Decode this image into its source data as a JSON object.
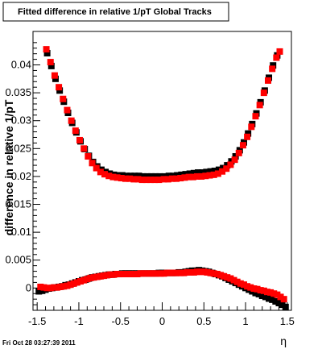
{
  "footer": {
    "timestamp": "Fri Oct 28 03:27:39 2011"
  },
  "chart_data": {
    "type": "scatter",
    "title": "Fitted difference in relative 1/pT  Global Tracks",
    "xlabel": "η",
    "ylabel": "difference in relative 1/pT",
    "xlim": [
      -1.55,
      1.55
    ],
    "ylim": [
      -0.004,
      0.046
    ],
    "xticks": [
      -1.5,
      -1,
      -0.5,
      0,
      0.5,
      1,
      1.5
    ],
    "xtick_labels": [
      "-1.5",
      "-1",
      "-0.5",
      "0",
      "0.5",
      "1",
      "1.5"
    ],
    "yticks": [
      0,
      0.005,
      0.01,
      0.015,
      0.02,
      0.025,
      0.03,
      0.035,
      0.04
    ],
    "ytick_labels": [
      "0",
      "0.005",
      "0.01",
      "0.015",
      "0.02",
      "0.025",
      "0.03",
      "0.035",
      "0.04"
    ],
    "grid": false,
    "series": [
      {
        "color": "#000000",
        "x": [
          -1.38,
          -1.33,
          -1.28,
          -1.23,
          -1.18,
          -1.13,
          -1.08,
          -1.03,
          -0.98,
          -0.93,
          -0.88,
          -0.83,
          -0.78,
          -0.73,
          -0.68,
          -0.63,
          -0.58,
          -0.53,
          -0.48,
          -0.43,
          -0.38,
          -0.33,
          -0.28,
          -0.23,
          -0.18,
          -0.13,
          -0.08,
          -0.03,
          0.03,
          0.08,
          0.13,
          0.18,
          0.23,
          0.28,
          0.33,
          0.38,
          0.43,
          0.48,
          0.53,
          0.58,
          0.63,
          0.68,
          0.73,
          0.78,
          0.83,
          0.88,
          0.93,
          0.98,
          1.03,
          1.08,
          1.13,
          1.18,
          1.23,
          1.28,
          1.33,
          1.38
        ],
        "y": [
          0.0421,
          0.0398,
          0.0375,
          0.0354,
          0.0334,
          0.0314,
          0.0296,
          0.0279,
          0.0263,
          0.0249,
          0.0237,
          0.0226,
          0.0218,
          0.0212,
          0.0208,
          0.0205,
          0.0203,
          0.0202,
          0.0202,
          0.0201,
          0.0201,
          0.0201,
          0.0201,
          0.02,
          0.02,
          0.02,
          0.02,
          0.02,
          0.02,
          0.0201,
          0.0201,
          0.0202,
          0.0203,
          0.0204,
          0.0205,
          0.0206,
          0.0207,
          0.0207,
          0.0208,
          0.0209,
          0.021,
          0.0212,
          0.0215,
          0.022,
          0.0227,
          0.0236,
          0.0247,
          0.0261,
          0.0277,
          0.0294,
          0.0313,
          0.0333,
          0.0354,
          0.0377,
          0.0399,
          0.0417
        ]
      },
      {
        "color": "#ff0000",
        "x": [
          -1.39,
          -1.34,
          -1.29,
          -1.24,
          -1.19,
          -1.14,
          -1.09,
          -1.04,
          -0.99,
          -0.94,
          -0.89,
          -0.84,
          -0.79,
          -0.74,
          -0.69,
          -0.64,
          -0.59,
          -0.54,
          -0.49,
          -0.44,
          -0.39,
          -0.34,
          -0.29,
          -0.24,
          -0.19,
          -0.14,
          -0.09,
          -0.04,
          0.02,
          0.07,
          0.12,
          0.17,
          0.22,
          0.27,
          0.32,
          0.37,
          0.42,
          0.47,
          0.52,
          0.57,
          0.62,
          0.67,
          0.72,
          0.77,
          0.82,
          0.87,
          0.92,
          0.97,
          1.02,
          1.07,
          1.12,
          1.17,
          1.22,
          1.27,
          1.32,
          1.37,
          1.41
        ],
        "y": [
          0.0428,
          0.0405,
          0.0381,
          0.036,
          0.0339,
          0.0319,
          0.03,
          0.0282,
          0.0265,
          0.025,
          0.0236,
          0.0224,
          0.0215,
          0.0208,
          0.0204,
          0.0201,
          0.0199,
          0.0198,
          0.0197,
          0.0196,
          0.0196,
          0.0195,
          0.0195,
          0.0194,
          0.0194,
          0.0194,
          0.0194,
          0.0194,
          0.0195,
          0.0195,
          0.0196,
          0.0196,
          0.0197,
          0.0198,
          0.0199,
          0.0199,
          0.02,
          0.02,
          0.0201,
          0.0202,
          0.0203,
          0.0205,
          0.0209,
          0.0214,
          0.0221,
          0.023,
          0.0242,
          0.0256,
          0.0271,
          0.0289,
          0.0308,
          0.0328,
          0.035,
          0.0372,
          0.0393,
          0.0413,
          0.0424
        ]
      },
      {
        "color": "#000000",
        "x": [
          -1.48,
          -1.44,
          -1.4,
          -1.36,
          -1.32,
          -1.28,
          -1.24,
          -1.2,
          -1.16,
          -1.12,
          -1.08,
          -1.04,
          -1.0,
          -0.96,
          -0.92,
          -0.88,
          -0.84,
          -0.8,
          -0.76,
          -0.72,
          -0.68,
          -0.64,
          -0.6,
          -0.56,
          -0.52,
          -0.48,
          -0.44,
          -0.4,
          -0.36,
          -0.32,
          -0.28,
          -0.24,
          -0.2,
          -0.16,
          -0.12,
          -0.08,
          -0.04,
          0.0,
          0.04,
          0.08,
          0.12,
          0.16,
          0.2,
          0.24,
          0.28,
          0.32,
          0.36,
          0.4,
          0.44,
          0.48,
          0.52,
          0.56,
          0.6,
          0.64,
          0.68,
          0.72,
          0.76,
          0.8,
          0.84,
          0.88,
          0.92,
          0.96,
          1.0,
          1.04,
          1.08,
          1.12,
          1.16,
          1.2,
          1.24,
          1.28,
          1.32,
          1.36,
          1.4,
          1.44,
          1.48
        ],
        "y": [
          -0.0006,
          -0.0005,
          -0.0003,
          -0.0001,
          0.0,
          0.0001,
          0.0002,
          0.0003,
          0.0005,
          0.0006,
          0.0008,
          0.001,
          0.0012,
          0.0014,
          0.0015,
          0.0017,
          0.0019,
          0.002,
          0.0021,
          0.0022,
          0.0023,
          0.0024,
          0.0024,
          0.0025,
          0.0025,
          0.0026,
          0.0026,
          0.0026,
          0.0026,
          0.0026,
          0.0026,
          0.0026,
          0.0026,
          0.0026,
          0.0026,
          0.0026,
          0.0027,
          0.0027,
          0.0027,
          0.0027,
          0.0027,
          0.0027,
          0.0028,
          0.0028,
          0.0029,
          0.003,
          0.0031,
          0.0031,
          0.0032,
          0.0031,
          0.003,
          0.0029,
          0.0027,
          0.0025,
          0.0023,
          0.0021,
          0.0018,
          0.0015,
          0.0012,
          0.0009,
          0.0006,
          0.0003,
          0.0,
          -0.0003,
          -0.0006,
          -0.0009,
          -0.0011,
          -0.0014,
          -0.0016,
          -0.0019,
          -0.0021,
          -0.0024,
          -0.0027,
          -0.003,
          -0.0034
        ]
      },
      {
        "color": "#ff0000",
        "x": [
          -1.46,
          -1.42,
          -1.38,
          -1.34,
          -1.3,
          -1.26,
          -1.22,
          -1.18,
          -1.14,
          -1.1,
          -1.06,
          -1.02,
          -0.98,
          -0.94,
          -0.9,
          -0.86,
          -0.82,
          -0.78,
          -0.74,
          -0.7,
          -0.66,
          -0.62,
          -0.58,
          -0.54,
          -0.5,
          -0.46,
          -0.42,
          -0.38,
          -0.34,
          -0.3,
          -0.26,
          -0.22,
          -0.18,
          -0.14,
          -0.1,
          -0.06,
          -0.02,
          0.02,
          0.06,
          0.1,
          0.14,
          0.18,
          0.22,
          0.26,
          0.3,
          0.34,
          0.38,
          0.42,
          0.46,
          0.5,
          0.54,
          0.58,
          0.62,
          0.66,
          0.7,
          0.74,
          0.78,
          0.82,
          0.86,
          0.9,
          0.94,
          0.98,
          1.02,
          1.06,
          1.1,
          1.14,
          1.18,
          1.22,
          1.26,
          1.3,
          1.34,
          1.38,
          1.42,
          1.46
        ],
        "y": [
          0.0002,
          0.0001,
          0.0,
          0.0,
          0.0001,
          0.0001,
          0.0002,
          0.0003,
          0.0004,
          0.0006,
          0.0008,
          0.001,
          0.0012,
          0.0014,
          0.0016,
          0.0018,
          0.0019,
          0.002,
          0.0021,
          0.0022,
          0.0023,
          0.0024,
          0.0024,
          0.0025,
          0.0025,
          0.0025,
          0.0025,
          0.0025,
          0.0025,
          0.0025,
          0.0026,
          0.0026,
          0.0026,
          0.0026,
          0.0026,
          0.0026,
          0.0026,
          0.0026,
          0.0027,
          0.0027,
          0.0027,
          0.0027,
          0.0027,
          0.0027,
          0.0028,
          0.0028,
          0.0028,
          0.0029,
          0.0029,
          0.0029,
          0.0028,
          0.0027,
          0.0026,
          0.0025,
          0.0023,
          0.0021,
          0.0019,
          0.0017,
          0.0014,
          0.0011,
          0.0008,
          0.0006,
          0.0003,
          0.0001,
          -0.0001,
          -0.0002,
          -0.0004,
          -0.0005,
          -0.0007,
          -0.0008,
          -0.001,
          -0.0012,
          -0.0016,
          -0.002
        ]
      }
    ]
  }
}
